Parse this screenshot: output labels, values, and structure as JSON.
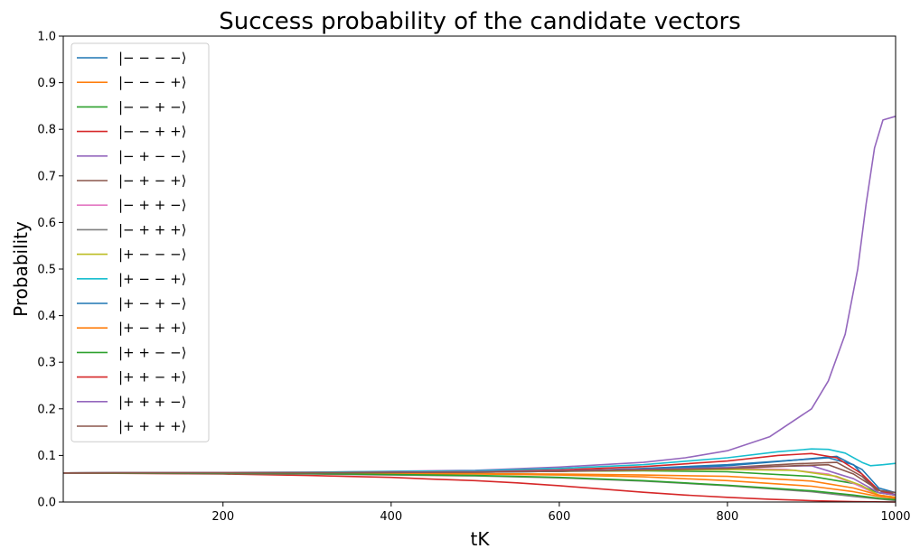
{
  "chart_data": {
    "type": "line",
    "title": "Success probability of the candidate vectors",
    "xlabel": "tK",
    "ylabel": "Probability",
    "xlim": [
      10,
      1000
    ],
    "ylim": [
      0,
      1.0
    ],
    "xticks": [
      200,
      400,
      600,
      800,
      1000
    ],
    "yticks": [
      0.0,
      0.1,
      0.2,
      0.3,
      0.4,
      0.5,
      0.6,
      0.7,
      0.8,
      0.9,
      1.0
    ],
    "yticklabels": [
      "0.0",
      "0.1",
      "0.2",
      "0.3",
      "0.4",
      "0.5",
      "0.6",
      "0.7",
      "0.8",
      "0.9",
      "1.0"
    ],
    "legend_position": "upper-left",
    "series": [
      {
        "name": "|− − − −⟩",
        "color": "#1f77b4",
        "x": [
          10,
          300,
          500,
          600,
          700,
          800,
          880,
          920,
          950,
          970,
          985,
          1000
        ],
        "y": [
          0.0625,
          0.063,
          0.064,
          0.066,
          0.072,
          0.08,
          0.09,
          0.095,
          0.08,
          0.04,
          0.02,
          0.02
        ]
      },
      {
        "name": "|− − − +⟩",
        "color": "#ff7f0e",
        "x": [
          10,
          300,
          500,
          600,
          700,
          800,
          900,
          950,
          980,
          1000
        ],
        "y": [
          0.0625,
          0.062,
          0.06,
          0.058,
          0.054,
          0.046,
          0.034,
          0.022,
          0.012,
          0.008
        ]
      },
      {
        "name": "|− − + −⟩",
        "color": "#2ca02c",
        "x": [
          10,
          300,
          500,
          600,
          700,
          800,
          900,
          950,
          980,
          1000
        ],
        "y": [
          0.0625,
          0.063,
          0.065,
          0.066,
          0.067,
          0.065,
          0.055,
          0.04,
          0.02,
          0.015
        ]
      },
      {
        "name": "|− − + +⟩",
        "color": "#d62728",
        "x": [
          10,
          200,
          300,
          400,
          450,
          500,
          550,
          600,
          650,
          700,
          750,
          800,
          850,
          900,
          950,
          1000
        ],
        "y": [
          0.0625,
          0.06,
          0.057,
          0.053,
          0.049,
          0.046,
          0.041,
          0.035,
          0.028,
          0.021,
          0.015,
          0.01,
          0.006,
          0.003,
          0.001,
          0.0
        ]
      },
      {
        "name": "|− + − −⟩",
        "color": "#9467bd",
        "x": [
          10,
          300,
          500,
          600,
          700,
          750,
          800,
          850,
          900,
          920,
          940,
          955,
          965,
          975,
          985,
          1000
        ],
        "y": [
          0.0625,
          0.064,
          0.068,
          0.075,
          0.085,
          0.095,
          0.11,
          0.14,
          0.2,
          0.26,
          0.36,
          0.5,
          0.64,
          0.76,
          0.82,
          0.828
        ]
      },
      {
        "name": "|− + − +⟩",
        "color": "#8c564b",
        "x": [
          10,
          300,
          500,
          600,
          700,
          800,
          880,
          930,
          960,
          980,
          1000
        ],
        "y": [
          0.0625,
          0.063,
          0.065,
          0.068,
          0.07,
          0.074,
          0.082,
          0.085,
          0.055,
          0.02,
          0.015
        ]
      },
      {
        "name": "|− + + −⟩",
        "color": "#e377c2",
        "x": [
          10,
          300,
          500,
          600,
          700,
          800,
          870,
          920,
          950,
          980,
          1000
        ],
        "y": [
          0.0625,
          0.063,
          0.064,
          0.066,
          0.069,
          0.072,
          0.07,
          0.06,
          0.04,
          0.015,
          0.01
        ]
      },
      {
        "name": "|− + + +⟩",
        "color": "#7f7f7f",
        "x": [
          10,
          300,
          500,
          600,
          700,
          800,
          900,
          950,
          1000
        ],
        "y": [
          0.0625,
          0.06,
          0.056,
          0.052,
          0.045,
          0.035,
          0.022,
          0.012,
          0.003
        ]
      },
      {
        "name": "|+ − − −⟩",
        "color": "#bcbd22",
        "x": [
          10,
          300,
          500,
          600,
          700,
          800,
          880,
          930,
          960,
          980,
          1000
        ],
        "y": [
          0.0625,
          0.063,
          0.064,
          0.066,
          0.068,
          0.07,
          0.068,
          0.055,
          0.035,
          0.015,
          0.01
        ]
      },
      {
        "name": "|+ − − +⟩",
        "color": "#17becf",
        "x": [
          10,
          300,
          500,
          600,
          700,
          800,
          860,
          900,
          920,
          940,
          960,
          970,
          985,
          1000
        ],
        "y": [
          0.0625,
          0.064,
          0.067,
          0.072,
          0.08,
          0.095,
          0.108,
          0.114,
          0.113,
          0.105,
          0.085,
          0.078,
          0.08,
          0.083
        ]
      },
      {
        "name": "|+ − + −⟩",
        "color": "#1f77b4",
        "x": [
          10,
          300,
          500,
          600,
          700,
          800,
          880,
          930,
          960,
          980,
          1000
        ],
        "y": [
          0.0625,
          0.063,
          0.064,
          0.066,
          0.07,
          0.078,
          0.09,
          0.098,
          0.07,
          0.03,
          0.02
        ]
      },
      {
        "name": "|+ − + +⟩",
        "color": "#ff7f0e",
        "x": [
          10,
          300,
          500,
          600,
          700,
          800,
          900,
          950,
          980,
          1000
        ],
        "y": [
          0.0625,
          0.062,
          0.061,
          0.06,
          0.058,
          0.055,
          0.045,
          0.03,
          0.015,
          0.01
        ]
      },
      {
        "name": "|+ + − −⟩",
        "color": "#2ca02c",
        "x": [
          10,
          300,
          500,
          600,
          700,
          800,
          900,
          950,
          980,
          1000
        ],
        "y": [
          0.0625,
          0.061,
          0.057,
          0.053,
          0.046,
          0.036,
          0.024,
          0.015,
          0.008,
          0.005
        ]
      },
      {
        "name": "|+ + − +⟩",
        "color": "#d62728",
        "x": [
          10,
          300,
          500,
          600,
          700,
          800,
          860,
          900,
          930,
          960,
          980,
          1000
        ],
        "y": [
          0.0625,
          0.063,
          0.065,
          0.069,
          0.076,
          0.088,
          0.1,
          0.104,
          0.095,
          0.06,
          0.025,
          0.015
        ]
      },
      {
        "name": "|+ + + −⟩",
        "color": "#9467bd",
        "x": [
          10,
          300,
          500,
          600,
          700,
          800,
          900,
          950,
          980,
          1000
        ],
        "y": [
          0.0625,
          0.063,
          0.065,
          0.067,
          0.07,
          0.074,
          0.078,
          0.05,
          0.02,
          0.015
        ]
      },
      {
        "name": "|+ + + +⟩",
        "color": "#8c564b",
        "x": [
          10,
          300,
          500,
          600,
          700,
          800,
          880,
          920,
          950,
          980,
          1000
        ],
        "y": [
          0.0625,
          0.063,
          0.064,
          0.066,
          0.069,
          0.072,
          0.078,
          0.08,
          0.06,
          0.025,
          0.02
        ]
      }
    ]
  }
}
